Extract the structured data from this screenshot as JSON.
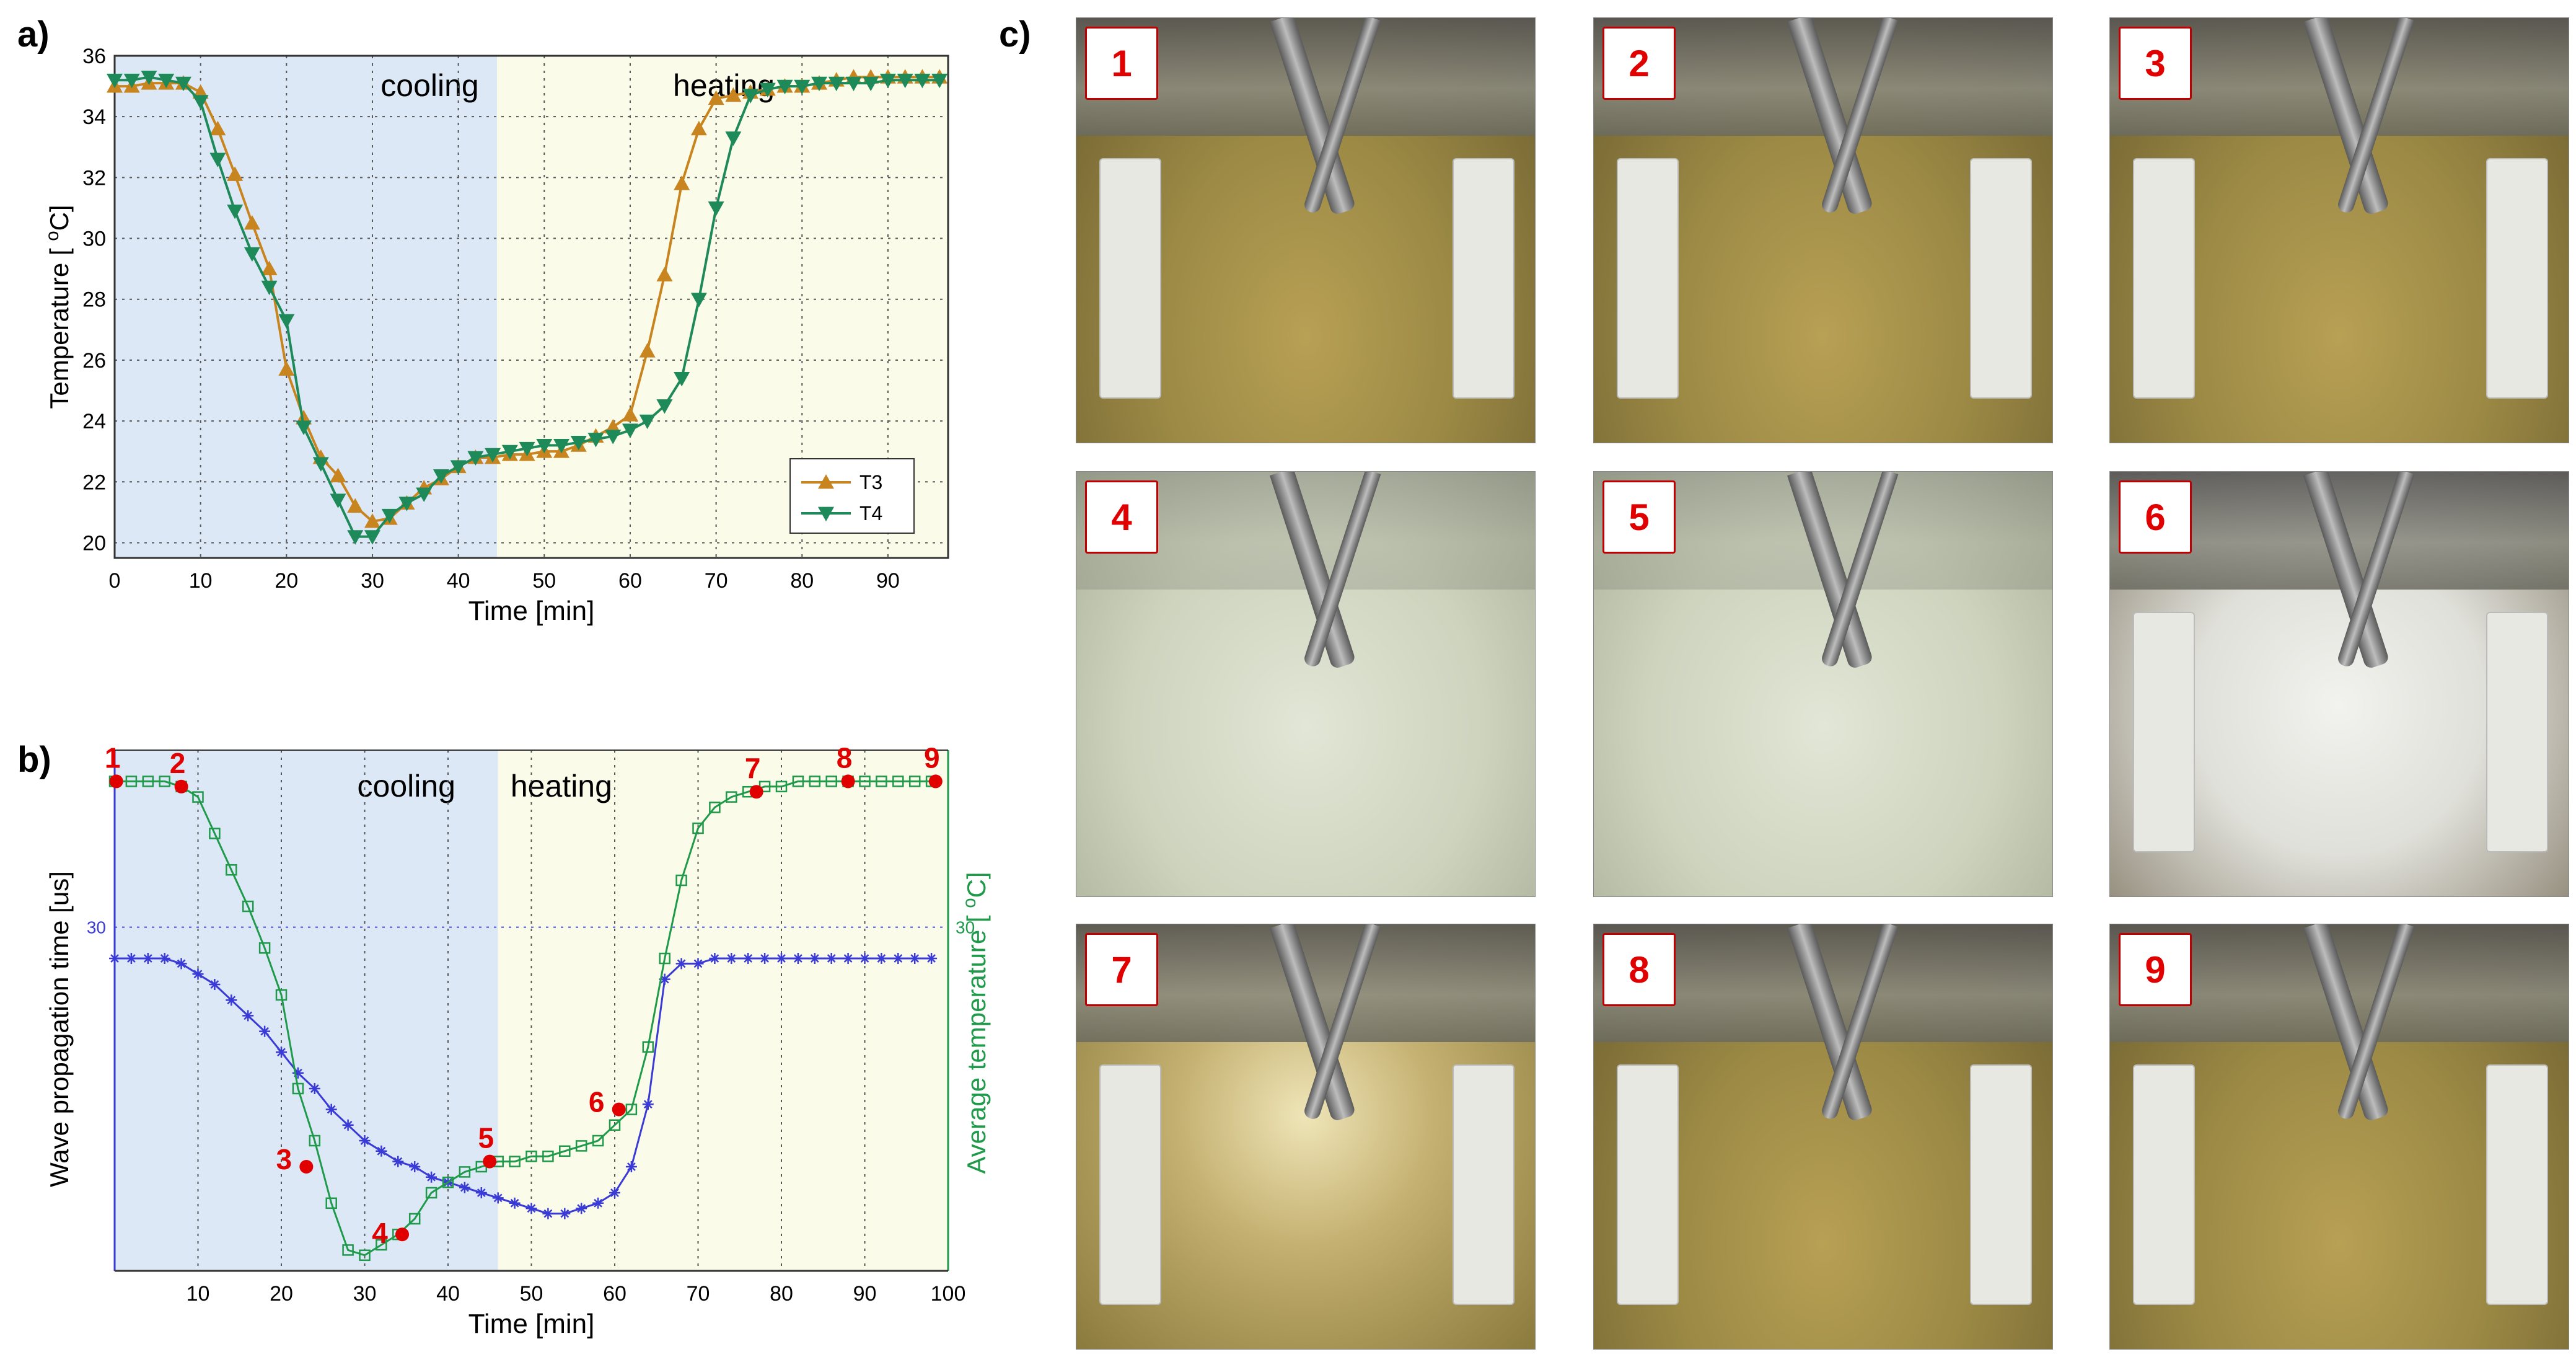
{
  "panels": {
    "a": "a)",
    "b": "b)",
    "c": "c)"
  },
  "chart_data": [
    {
      "type": "line",
      "panel": "a",
      "xlabel": "Time [min]",
      "ylabel": "Temperature [ °C]",
      "xlim": [
        0,
        97
      ],
      "ylim": [
        19.5,
        36
      ],
      "xticks": [
        0,
        10,
        20,
        30,
        40,
        50,
        60,
        70,
        80,
        90
      ],
      "yticks": [
        20,
        22,
        24,
        26,
        28,
        30,
        32,
        34,
        36
      ],
      "regions": [
        {
          "label": "cooling",
          "from": 0,
          "to": 44.5,
          "color": "#dce8f6"
        },
        {
          "label": "heating",
          "from": 44.5,
          "to": 97,
          "color": "#fbfbe9"
        }
      ],
      "legend_position": "bottom-right",
      "series": [
        {
          "name": "T3",
          "color": "#c8841e",
          "marker": "triangle-up",
          "x": [
            0,
            2,
            4,
            6,
            8,
            10,
            12,
            14,
            16,
            18,
            20,
            22,
            24,
            26,
            28,
            30,
            32,
            34,
            36,
            38,
            40,
            42,
            44,
            46,
            48,
            50,
            52,
            54,
            56,
            58,
            60,
            62,
            64,
            66,
            68,
            70,
            72,
            74,
            76,
            78,
            80,
            82,
            84,
            86,
            88,
            90,
            92,
            94,
            96
          ],
          "y": [
            35.0,
            35.0,
            35.1,
            35.1,
            35.1,
            34.8,
            33.6,
            32.1,
            30.5,
            29.0,
            25.7,
            24.1,
            22.8,
            22.2,
            21.2,
            20.7,
            20.8,
            21.3,
            21.8,
            22.1,
            22.5,
            22.8,
            22.8,
            22.9,
            22.9,
            23.0,
            23.0,
            23.2,
            23.5,
            23.8,
            24.2,
            26.3,
            28.8,
            31.8,
            33.6,
            34.6,
            34.7,
            34.8,
            34.9,
            35.0,
            35.0,
            35.1,
            35.2,
            35.3,
            35.3,
            35.3,
            35.3,
            35.3,
            35.3
          ]
        },
        {
          "name": "T4",
          "color": "#1e8a5a",
          "marker": "triangle-down",
          "x": [
            0,
            2,
            4,
            6,
            8,
            10,
            12,
            14,
            16,
            18,
            20,
            22,
            24,
            26,
            28,
            30,
            32,
            34,
            36,
            38,
            40,
            42,
            44,
            46,
            48,
            50,
            52,
            54,
            56,
            58,
            60,
            62,
            64,
            66,
            68,
            70,
            72,
            74,
            76,
            78,
            80,
            82,
            84,
            86,
            88,
            90,
            92,
            94,
            96
          ],
          "y": [
            35.2,
            35.2,
            35.3,
            35.2,
            35.1,
            34.5,
            32.6,
            30.9,
            29.5,
            28.4,
            27.3,
            23.8,
            22.6,
            21.4,
            20.2,
            20.2,
            20.9,
            21.3,
            21.6,
            22.2,
            22.5,
            22.8,
            22.9,
            23.0,
            23.1,
            23.2,
            23.2,
            23.3,
            23.4,
            23.5,
            23.7,
            24.0,
            24.5,
            25.4,
            28.0,
            31.0,
            33.3,
            34.7,
            34.9,
            35.0,
            35.0,
            35.1,
            35.1,
            35.1,
            35.1,
            35.2,
            35.2,
            35.2,
            35.2
          ]
        }
      ]
    },
    {
      "type": "line",
      "panel": "b",
      "xlabel": "Time [min]",
      "ylabel": "Wave propagation time [us]",
      "ylabel_right": "Average temperature [ °C]",
      "xlim": [
        0,
        100
      ],
      "xticks": [
        10,
        20,
        30,
        40,
        50,
        60,
        70,
        80,
        90,
        100
      ],
      "left_tick_label": "30",
      "right_tick_label": "30",
      "ylim": [
        0,
        1
      ],
      "regions": [
        {
          "label": "cooling",
          "from": 0,
          "to": 46,
          "color": "#dce8f6"
        },
        {
          "label": "heating",
          "from": 46,
          "to": 100,
          "color": "#fbfbe9"
        }
      ],
      "series": [
        {
          "name": "Wave propagation time",
          "color": "#3a3ad6",
          "marker": "star",
          "axis": "left",
          "x": [
            0,
            2,
            4,
            6,
            8,
            10,
            12,
            14,
            16,
            18,
            20,
            22,
            24,
            26,
            28,
            30,
            32,
            34,
            36,
            38,
            40,
            42,
            44,
            46,
            48,
            50,
            52,
            54,
            56,
            58,
            60,
            62,
            64,
            66,
            68,
            70,
            72,
            74,
            76,
            78,
            80,
            82,
            84,
            86,
            88,
            90,
            92,
            94,
            96,
            98
          ],
          "y": [
            0.6,
            0.6,
            0.6,
            0.6,
            0.59,
            0.57,
            0.55,
            0.52,
            0.49,
            0.46,
            0.42,
            0.38,
            0.35,
            0.31,
            0.28,
            0.25,
            0.23,
            0.21,
            0.2,
            0.18,
            0.17,
            0.16,
            0.15,
            0.14,
            0.13,
            0.12,
            0.11,
            0.11,
            0.12,
            0.13,
            0.15,
            0.2,
            0.32,
            0.56,
            0.59,
            0.59,
            0.6,
            0.6,
            0.6,
            0.6,
            0.6,
            0.6,
            0.6,
            0.6,
            0.6,
            0.6,
            0.6,
            0.6,
            0.6,
            0.6
          ]
        },
        {
          "name": "Average temperature",
          "color": "#1e9a4a",
          "marker": "square",
          "axis": "right",
          "x": [
            0,
            2,
            4,
            6,
            8,
            10,
            12,
            14,
            16,
            18,
            20,
            22,
            24,
            26,
            28,
            30,
            32,
            34,
            36,
            38,
            40,
            42,
            44,
            46,
            48,
            50,
            52,
            54,
            56,
            58,
            60,
            62,
            64,
            66,
            68,
            70,
            72,
            74,
            76,
            78,
            80,
            82,
            84,
            86,
            88,
            90,
            92,
            94,
            96,
            98
          ],
          "y": [
            0.94,
            0.94,
            0.94,
            0.94,
            0.93,
            0.91,
            0.84,
            0.77,
            0.7,
            0.62,
            0.53,
            0.35,
            0.25,
            0.13,
            0.04,
            0.03,
            0.05,
            0.07,
            0.1,
            0.15,
            0.17,
            0.19,
            0.2,
            0.21,
            0.21,
            0.22,
            0.22,
            0.23,
            0.24,
            0.25,
            0.28,
            0.31,
            0.43,
            0.6,
            0.75,
            0.85,
            0.89,
            0.91,
            0.92,
            0.93,
            0.93,
            0.94,
            0.94,
            0.94,
            0.94,
            0.94,
            0.94,
            0.94,
            0.94,
            0.94
          ]
        }
      ],
      "markers": [
        {
          "label": "1",
          "x": 0.2,
          "y": 0.94
        },
        {
          "label": "2",
          "x": 8,
          "y": 0.93
        },
        {
          "label": "3",
          "x": 23,
          "y": 0.2
        },
        {
          "label": "4",
          "x": 34.5,
          "y": 0.07
        },
        {
          "label": "5",
          "x": 45,
          "y": 0.21
        },
        {
          "label": "6",
          "x": 60.5,
          "y": 0.31
        },
        {
          "label": "7",
          "x": 77,
          "y": 0.92
        },
        {
          "label": "8",
          "x": 88,
          "y": 0.94
        },
        {
          "label": "9",
          "x": 98.5,
          "y": 0.94
        }
      ],
      "marker_color": "#e00000"
    }
  ],
  "photos": [
    {
      "label": "1",
      "state": "clear"
    },
    {
      "label": "2",
      "state": "clear"
    },
    {
      "label": "3",
      "state": "clear"
    },
    {
      "label": "4",
      "state": "frosted"
    },
    {
      "label": "5",
      "state": "frosted"
    },
    {
      "label": "6",
      "state": "cloud"
    },
    {
      "label": "7",
      "state": "melting"
    },
    {
      "label": "8",
      "state": "clear"
    },
    {
      "label": "9",
      "state": "clear"
    }
  ]
}
